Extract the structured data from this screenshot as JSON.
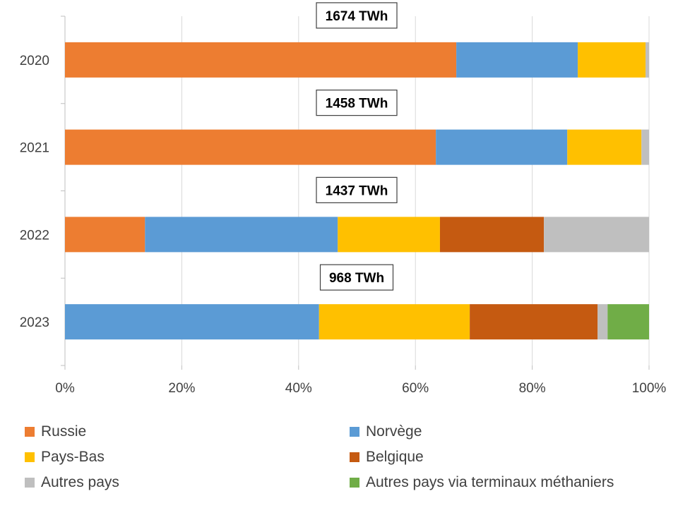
{
  "chart_data": {
    "type": "bar",
    "orientation": "horizontal",
    "stacked": "percent",
    "categories": [
      "2020",
      "2021",
      "2022",
      "2023"
    ],
    "series": [
      {
        "name": "Russie",
        "color": "#ED7D31",
        "values": [
          67.0,
          63.5,
          13.7,
          0
        ]
      },
      {
        "name": "Norvège",
        "color": "#5B9BD5",
        "values": [
          20.8,
          22.5,
          33.0,
          43.5
        ]
      },
      {
        "name": "Pays-Bas",
        "color": "#FFC000",
        "values": [
          11.6,
          12.7,
          17.5,
          25.8
        ]
      },
      {
        "name": "Belgique",
        "color": "#C55A11",
        "values": [
          0,
          0,
          17.8,
          21.9
        ]
      },
      {
        "name": "Autres pays",
        "color": "#BFBFBF",
        "values": [
          0.6,
          1.3,
          18.0,
          1.7
        ]
      },
      {
        "name": "Autres pays via terminaux méthaniers",
        "color": "#70AD47",
        "values": [
          0,
          0,
          0,
          7.1
        ]
      }
    ],
    "totals": [
      "1674 TWh",
      "1458 TWh",
      "1437 TWh",
      "968 TWh"
    ],
    "xlim": [
      0,
      100
    ],
    "xticks": [
      "0%",
      "20%",
      "40%",
      "60%",
      "80%",
      "100%"
    ],
    "grid": true,
    "legend_position": "bottom",
    "title": "",
    "xlabel": "",
    "ylabel": ""
  }
}
